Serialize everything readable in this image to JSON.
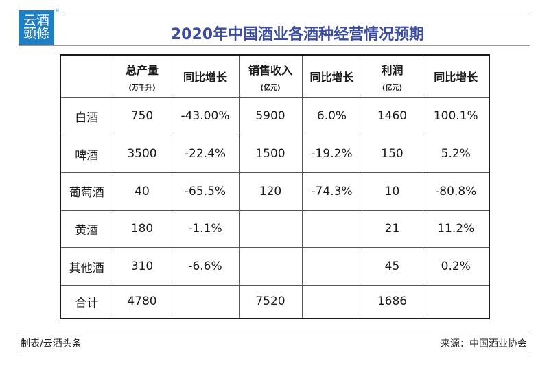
{
  "logo": {
    "line1": "云酒",
    "line2": "頭條",
    "reg_mark": "®"
  },
  "title": "2020年中国酒业各酒种经营情况预期",
  "table": {
    "headers": [
      {
        "main": "",
        "unit": ""
      },
      {
        "main": "总产量",
        "unit": "(万千升)"
      },
      {
        "main": "同比增长",
        "unit": ""
      },
      {
        "main": "销售收入",
        "unit": "(亿元)"
      },
      {
        "main": "同比增长",
        "unit": ""
      },
      {
        "main": "利润",
        "unit": "(亿元)"
      },
      {
        "main": "同比增长",
        "unit": ""
      }
    ],
    "rows": [
      {
        "label": "白酒",
        "cells": [
          "750",
          "-43.00%",
          "5900",
          "6.0%",
          "1460",
          "100.1%"
        ]
      },
      {
        "label": "啤酒",
        "cells": [
          "3500",
          "-22.4%",
          "1500",
          "-19.2%",
          "150",
          "5.2%"
        ]
      },
      {
        "label": "葡萄酒",
        "cells": [
          "40",
          "-65.5%",
          "120",
          "-74.3%",
          "10",
          "-80.8%"
        ]
      },
      {
        "label": "黄酒",
        "cells": [
          "180",
          "-1.1%",
          "",
          "",
          "21",
          "11.2%"
        ]
      },
      {
        "label": "其他酒",
        "cells": [
          "310",
          "-6.6%",
          "",
          "",
          "45",
          "0.2%"
        ]
      },
      {
        "label": "合计",
        "cells": [
          "4780",
          "",
          "7520",
          "",
          "1686",
          ""
        ]
      }
    ]
  },
  "footer": {
    "left": "制表/云酒头条",
    "right": "来源：中国酒业协会"
  },
  "colors": {
    "title": "#3c4da0",
    "logo_bg": "#1e7fc4"
  }
}
